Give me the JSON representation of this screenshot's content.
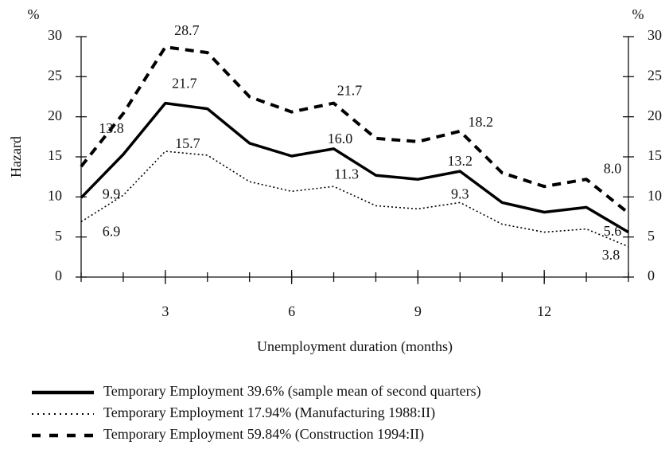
{
  "chart_data": {
    "type": "line",
    "y_unit_left": "%",
    "y_unit_right": "%",
    "ylabel": "Hazard",
    "xlabel": "Unemployment duration (months)",
    "x": [
      1,
      2,
      3,
      4,
      5,
      6,
      7,
      8,
      9,
      10,
      11,
      12,
      13,
      14
    ],
    "xlim": [
      1,
      14
    ],
    "xticks": [
      3,
      6,
      9,
      12
    ],
    "ylim": [
      0,
      30
    ],
    "yticks": [
      0,
      5,
      10,
      15,
      20,
      25,
      30
    ],
    "y2lim": [
      0,
      30
    ],
    "y2ticks": [
      0,
      5,
      10,
      15,
      20,
      25,
      30
    ],
    "series": [
      {
        "name": "Temporary Employment 39.6% (sample mean of second quarters)",
        "color": "#000000",
        "style": "solid",
        "values": [
          9.9,
          15.3,
          21.7,
          21.0,
          16.7,
          15.1,
          16.0,
          12.7,
          12.2,
          13.2,
          9.3,
          8.1,
          8.7,
          5.6
        ],
        "value_labels": [
          "9.9",
          null,
          "21.7",
          null,
          null,
          null,
          "16.0",
          null,
          null,
          "13.2",
          null,
          null,
          null,
          "5.6"
        ]
      },
      {
        "name": "Temporary Employment 17.94% (Manufacturing 1988:II)",
        "color": "#000000",
        "style": "dotted",
        "values": [
          6.9,
          10.2,
          15.7,
          15.2,
          11.9,
          10.7,
          11.3,
          8.9,
          8.5,
          9.3,
          6.6,
          5.6,
          6.0,
          3.8
        ],
        "value_labels": [
          "6.9",
          null,
          "15.7",
          null,
          null,
          null,
          "11.3",
          null,
          null,
          "9.3",
          null,
          null,
          null,
          "3.8"
        ]
      },
      {
        "name": "Temporary Employment 59.84% (Construction 1994:II)",
        "color": "#000000",
        "style": "dashed",
        "values": [
          13.8,
          20.4,
          28.7,
          28.0,
          22.5,
          20.6,
          21.7,
          17.3,
          16.9,
          18.2,
          13.0,
          11.3,
          12.2,
          8.0
        ],
        "value_labels": [
          "13.8",
          null,
          "28.7",
          null,
          null,
          null,
          "21.7",
          null,
          null,
          "18.2",
          null,
          null,
          null,
          "8.0"
        ]
      }
    ]
  }
}
